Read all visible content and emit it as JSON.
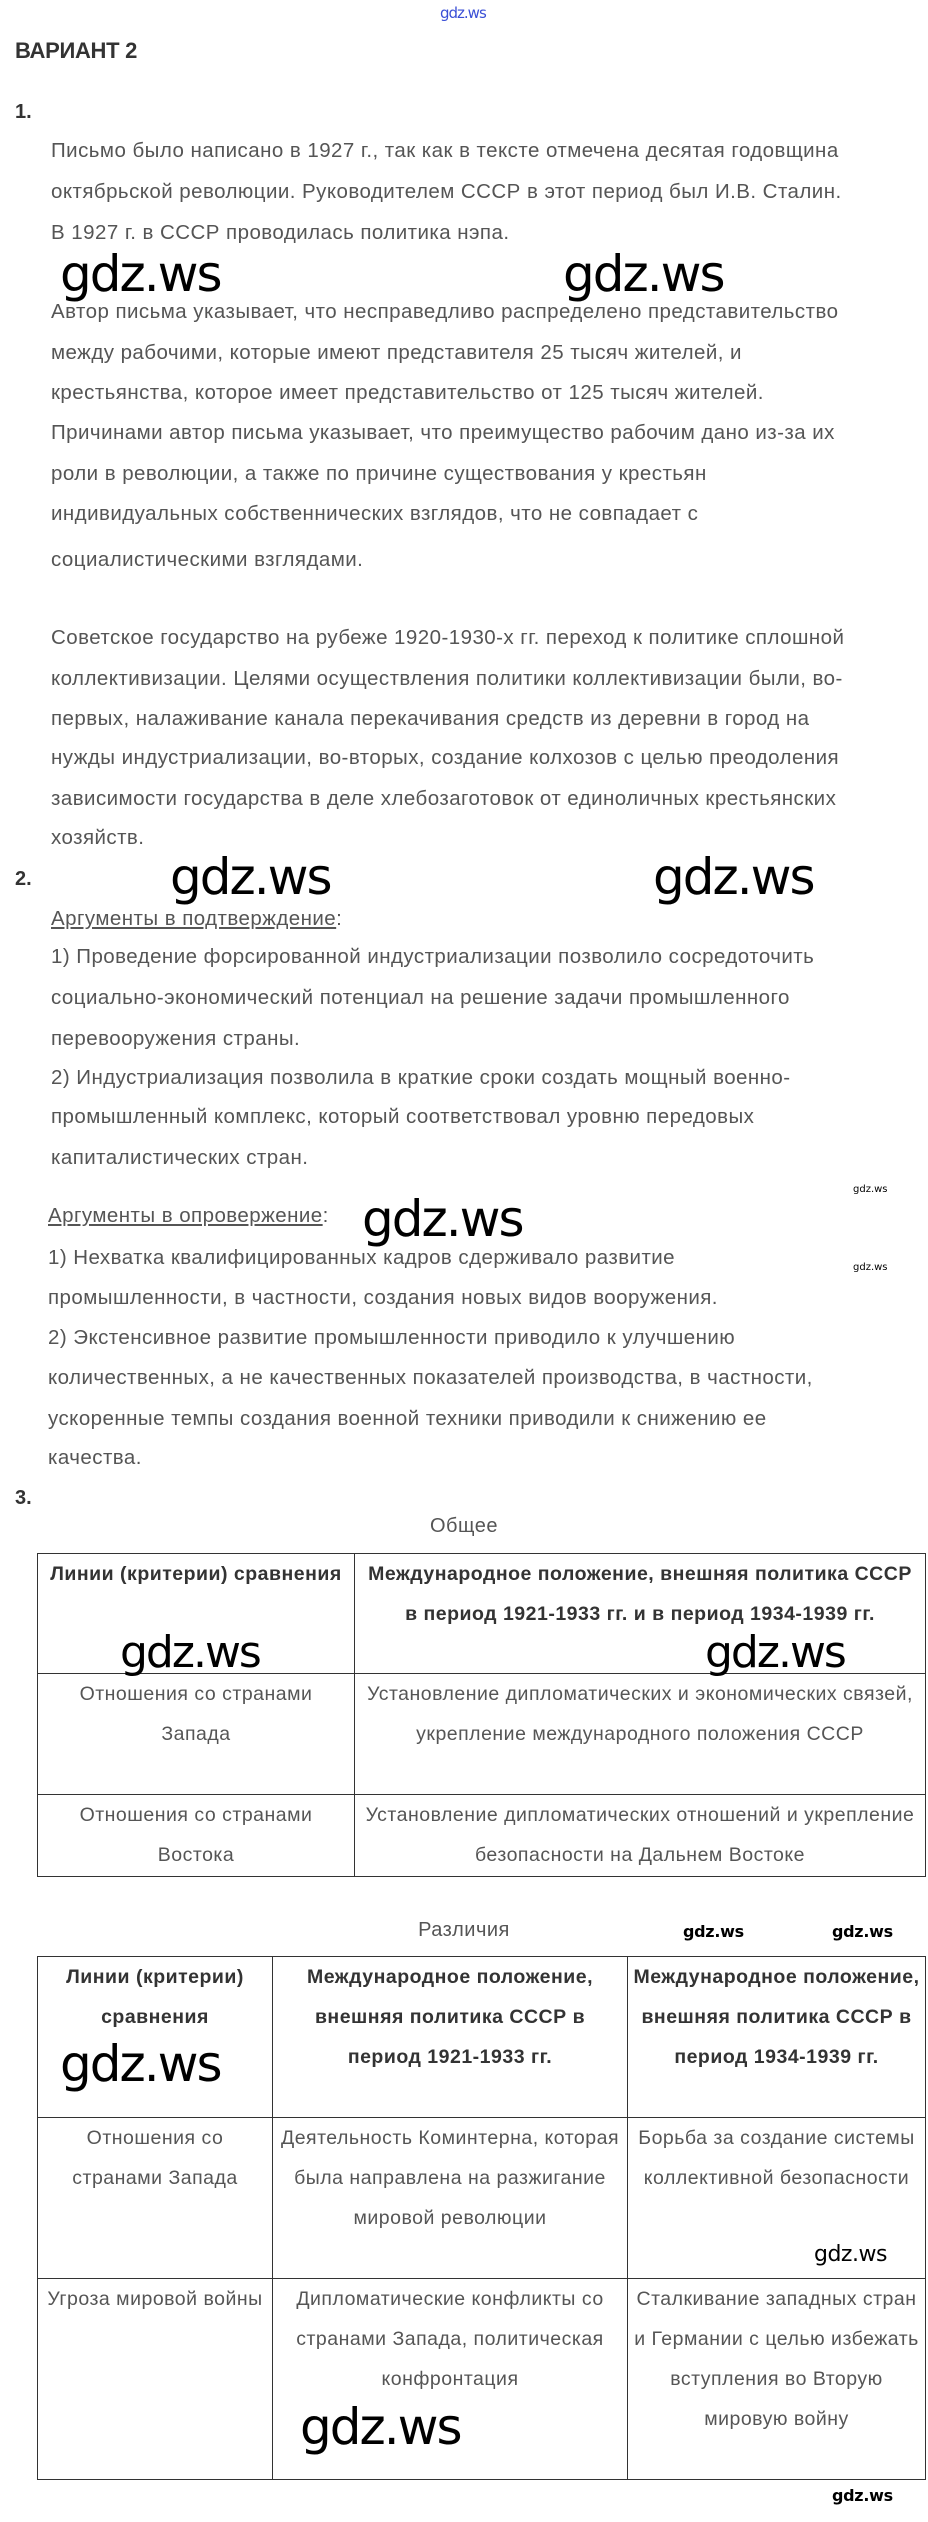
{
  "watermark": "gdz.ws",
  "title": "ВАРИАНТ 2",
  "q1": {
    "number": "1.",
    "p1": [
      "Письмо было написано в 1927 г., так как в тексте отмечена десятая годовщина",
      "октябрьской революции. Руководителем СССР в этот период был И.В. Сталин.",
      "В 1927 г. в СССР проводилась политика нэпа."
    ],
    "p2": [
      "Автор письма указывает, что несправедливо распределено представительство",
      "между рабочими, которые имеют представителя 25 тысяч жителей, и",
      "крестьянства, которое имеет представительство от 125 тысяч жителей.",
      "Причинами автор письма указывает, что преимущество рабочим дано из-за их",
      "роли в революции, а также по причине существования у крестьян",
      "индивидуальных собственнических взглядов, что не совпадает с",
      "социалистическими взглядами."
    ],
    "p3": [
      "Советское государство на рубеже 1920-1930-х гг. переход к политике сплошной",
      "коллективизации. Целями осуществления политики коллективизации были, во-",
      "первых, налаживание канала перекачивания средств из деревни в город на",
      "нужды индустриализации, во-вторых, создание колхозов с целью преодоления",
      "зависимости государства в деле хлебозаготовок от единоличных крестьянских",
      "хозяйств."
    ]
  },
  "q2": {
    "number": "2.",
    "pro_heading": "Аргументы в подтверждение",
    "colon": ":",
    "pro": [
      "1) Проведение форсированной индустриализации позволило сосредоточить",
      "социально-экономический потенциал на решение задачи промышленного",
      "перевооружения страны.",
      "2) Индустриализация позволила в краткие сроки создать мощный военно-",
      "промышленный комплекс, который соответствовал уровню передовых",
      "капиталистических стран."
    ],
    "con_heading": "Аргументы в опровержение",
    "con": [
      "1) Нехватка квалифицированных кадров сдерживало развитие",
      "промышленности, в частности, создания новых видов вооружения.",
      "2) Экстенсивное развитие промышленности приводило к улучшению",
      "количественных, а не качественных показателей производства, в частности,",
      "ускоренные темпы создания военной техники приводили к снижению ее",
      "качества."
    ]
  },
  "q3": {
    "number": "3.",
    "common": {
      "caption": "Общее",
      "headers": [
        "Линии (критерии) сравнения",
        "Международное положение, внешняя политика СССР в период 1921-1933 гг. и в период 1934-1939 гг."
      ],
      "rows": [
        [
          "Отношения со странами Запада",
          "Установление дипломатических и экономических связей, укрепление международного положения СССР"
        ],
        [
          "Отношения со странами Востока",
          "Установление дипломатических отношений и укрепление безопасности на Дальнем Востоке"
        ]
      ]
    },
    "differences": {
      "caption": "Различия",
      "headers": [
        "Линии (критерии) сравнения",
        "Международное положение, внешняя политика СССР в период 1921-1933 гг.",
        "Международное положение, внешняя политика СССР в период 1934-1939 гг."
      ],
      "rows": [
        [
          "Отношения со странами Запада",
          "Деятельность Коминтерна, которая была направлена на разжигание мировой революции",
          "Борьба за создание системы коллективной безопасности"
        ],
        [
          "Угроза мировой войны",
          "Дипломатические конфликты со странами Запада, политическая конфронтация",
          "Сталкивание западных стран и Германии с целью избежать вступления во Вторую мировую войну"
        ]
      ]
    }
  }
}
